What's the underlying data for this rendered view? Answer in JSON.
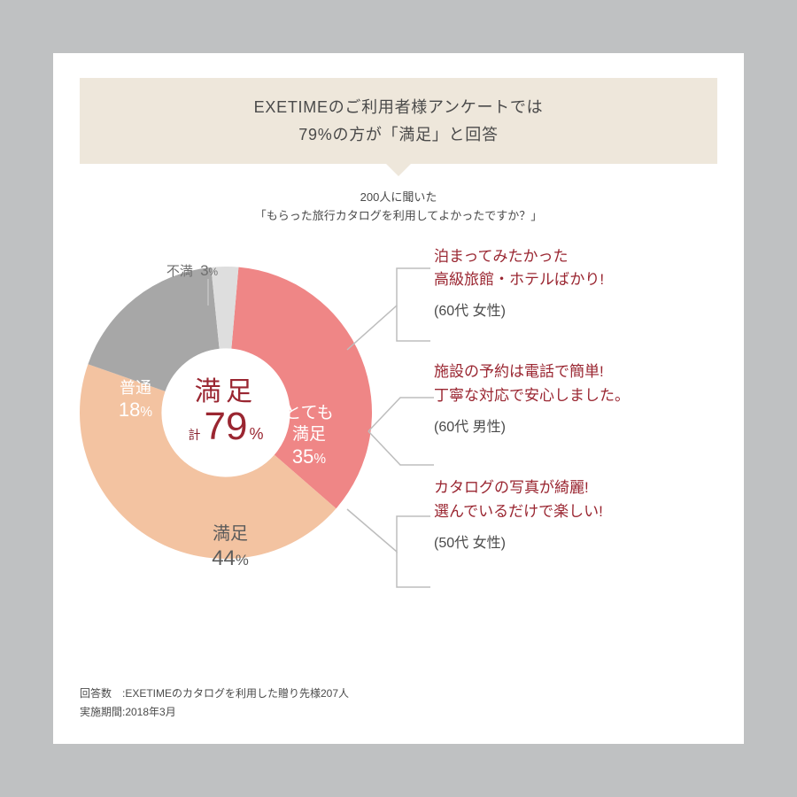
{
  "colors": {
    "page_bg": "#bfc1c2",
    "card_bg": "#ffffff",
    "banner_bg": "#eee7db",
    "text": "#4a4a4a",
    "accent": "#9a2631",
    "slice_very_satisfied": "#ef8686",
    "slice_satisfied": "#f3c3a1",
    "slice_normal": "#a7a7a7",
    "slice_unsatisfied": "#dedede",
    "bracket": "#bdbdbd"
  },
  "banner": {
    "line1": "EXETIMEのご利用者様アンケートでは",
    "line2": "79%の方が「満足」と回答"
  },
  "subhead": {
    "line1": "200人に聞いた",
    "line2": "「もらった旅行カタログを利用してよかったですか？」"
  },
  "chart": {
    "type": "donut",
    "inner_radius_ratio": 0.44,
    "start_angle_deg": 5,
    "slices": [
      {
        "key": "very_satisfied",
        "label": "とても\n満足",
        "value": 35,
        "color": "#ef8686",
        "text_color": "#ffffff"
      },
      {
        "key": "satisfied",
        "label": "満足",
        "value": 44,
        "color": "#f3c3a1",
        "text_color": "#5b5b5b"
      },
      {
        "key": "normal",
        "label": "普通",
        "value": 18,
        "color": "#a7a7a7",
        "text_color": "#ffffff"
      },
      {
        "key": "unsatisfied",
        "label": "不満",
        "value": 3,
        "color": "#dedede",
        "text_color": "#6f6f6f"
      }
    ],
    "center": {
      "title": "満足",
      "prefix": "計",
      "value": 79,
      "suffix": "%"
    }
  },
  "callouts": [
    {
      "quote_lines": [
        "泊まってみたかった",
        "高級旅館・ホテルばかり!"
      ],
      "who": "(60代 女性)"
    },
    {
      "quote_lines": [
        "施設の予約は電話で簡単!",
        "丁寧な対応で安心しました。"
      ],
      "who": "(60代 男性)"
    },
    {
      "quote_lines": [
        "カタログの写真が綺麗!",
        "選んでいるだけで楽しい!"
      ],
      "who": "(50代 女性)"
    }
  ],
  "footer": {
    "line1": "回答数　:EXETIMEのカタログを利用した贈り先様207人",
    "line2": "実施期間:2018年3月"
  }
}
